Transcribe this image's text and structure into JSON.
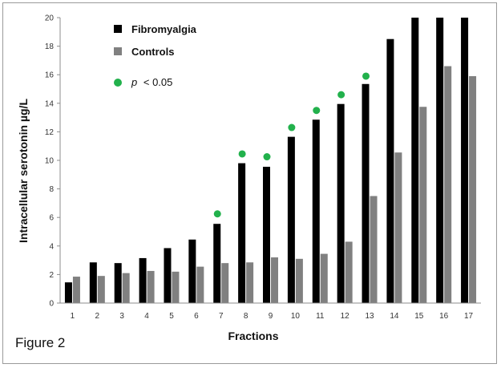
{
  "figure_label": "Figure 2",
  "chart_data": {
    "type": "bar",
    "title": "",
    "xlabel": "Fractions",
    "ylabel": "Intracellular serotonin µg/L",
    "ylim": [
      0,
      20
    ],
    "yticks": [
      0,
      2,
      4,
      6,
      8,
      10,
      12,
      14,
      16,
      18,
      20
    ],
    "grid": false,
    "legend_position": "top-left",
    "categories": [
      "1",
      "2",
      "3",
      "4",
      "5",
      "6",
      "7",
      "8",
      "9",
      "10",
      "11",
      "12",
      "13",
      "14",
      "15",
      "16",
      "17"
    ],
    "series": [
      {
        "name": "Fibromyalgia",
        "color": "#000000",
        "values": [
          1.45,
          2.85,
          2.8,
          3.15,
          3.85,
          4.45,
          5.55,
          9.8,
          9.55,
          11.65,
          12.85,
          13.95,
          15.35,
          18.5,
          20,
          20,
          20
        ]
      },
      {
        "name": "Controls",
        "color": "#808080",
        "values": [
          1.85,
          1.9,
          2.1,
          2.25,
          2.2,
          2.55,
          2.8,
          2.85,
          3.2,
          3.1,
          3.45,
          4.3,
          7.5,
          10.55,
          13.75,
          16.6,
          15.9
        ]
      }
    ],
    "significance": {
      "label_prefix": "p",
      "label_rest": "< 0.05",
      "color": "#22b14c",
      "points": [
        {
          "category": "7",
          "y": 6.25
        },
        {
          "category": "8",
          "y": 10.45
        },
        {
          "category": "9",
          "y": 10.25
        },
        {
          "category": "10",
          "y": 12.3
        },
        {
          "category": "11",
          "y": 13.5
        },
        {
          "category": "12",
          "y": 14.6
        },
        {
          "category": "13",
          "y": 15.9
        }
      ]
    }
  }
}
